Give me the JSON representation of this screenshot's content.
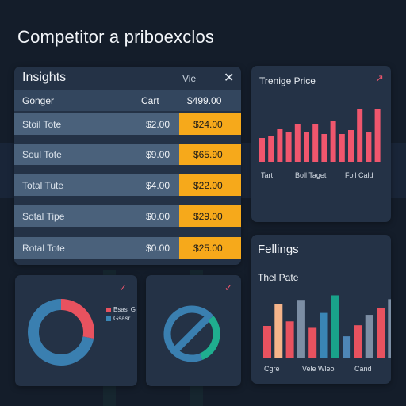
{
  "page": {
    "title": "Competitor a priboexclos"
  },
  "insights": {
    "title": "Insights",
    "menu_label": "Vie",
    "close_glyph": "✕",
    "columns": [
      "Gonger",
      "Cart",
      "$499.00"
    ],
    "rows": [
      {
        "name": "Stoil Tote",
        "value": "$2.00",
        "price": "$24.00"
      },
      {
        "name": "Soul Tote",
        "value": "$9.00",
        "price": "$65.90"
      },
      {
        "name": "Total Tute",
        "value": "$4.00",
        "price": "$22.00"
      },
      {
        "name": "Sotal Tipe",
        "value": "$0.00",
        "price": "$29.00"
      },
      {
        "name": "Rotal Tote",
        "value": "$0.00",
        "price": "$25.00"
      }
    ]
  },
  "trend": {
    "title": "Trenige Price",
    "arrow_glyph": "↗",
    "labels": [
      "Tart",
      "Boll Taget",
      "Foll Cald"
    ],
    "bar_values": [
      30,
      32,
      41,
      38,
      48,
      38,
      47,
      35,
      51,
      35,
      40,
      66,
      37,
      67
    ]
  },
  "fellings": {
    "title": "Fellings",
    "subtitle": "Thel Pate",
    "labels": [
      "Cgre",
      "Vele Wleo",
      "Cand"
    ],
    "bars": [
      {
        "value": 50,
        "color": "#e8525f"
      },
      {
        "value": 83,
        "color": "#f5b48a"
      },
      {
        "value": 57,
        "color": "#e8525f"
      },
      {
        "value": 90,
        "color": "#7c8ea4"
      },
      {
        "value": 47,
        "color": "#e8525f"
      },
      {
        "value": 70,
        "color": "#3a86b5"
      },
      {
        "value": 97,
        "color": "#19a28a"
      },
      {
        "value": 34,
        "color": "#4e86b7"
      },
      {
        "value": 51,
        "color": "#e8525f"
      },
      {
        "value": 67,
        "color": "#7c8ea4"
      },
      {
        "value": 77,
        "color": "#e8525f"
      },
      {
        "value": 91,
        "color": "#7c8ea4"
      }
    ]
  },
  "donut1": {
    "check_glyph": "✓",
    "legend": [
      {
        "label": "Bsasi G",
        "color": "#e8525f"
      },
      {
        "label": "Gsasr",
        "color": "#3a86b5"
      }
    ],
    "segments": [
      {
        "value": 0.28,
        "color": "#e8525f"
      },
      {
        "value": 0.72,
        "color": "#3a7fb0"
      }
    ]
  },
  "donut2": {
    "check_glyph": "✓",
    "segments": [
      {
        "value": 0.3,
        "color": "#1fae8f"
      },
      {
        "value": 0.7,
        "color": "#3a7fb0"
      }
    ]
  },
  "colors": {
    "background": "#141d2a",
    "panel": "#243246",
    "accent": "#f6a91b",
    "bar_red": "#f0566d"
  }
}
